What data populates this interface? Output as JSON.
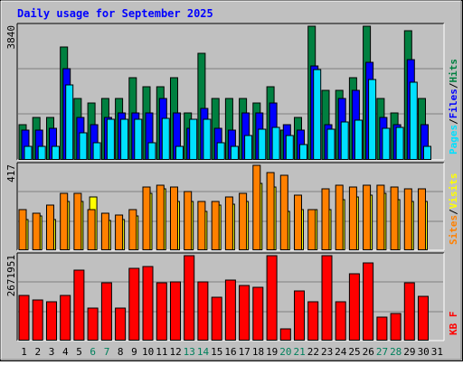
{
  "chart_data": {
    "type": "bar",
    "title": "Daily usage for September 2025",
    "categories": [
      "1",
      "2",
      "3",
      "4",
      "5",
      "6",
      "7",
      "8",
      "9",
      "10",
      "11",
      "12",
      "13",
      "14",
      "15",
      "16",
      "17",
      "18",
      "19",
      "20",
      "21",
      "22",
      "23",
      "24",
      "25",
      "26",
      "27",
      "28",
      "29",
      "30",
      "31"
    ],
    "weekend_days": [
      "6",
      "7",
      "13",
      "14",
      "20",
      "21",
      "27",
      "28"
    ],
    "panels": {
      "top": {
        "ymax_label": "3840",
        "ymax": 3840,
        "legend": [
          "Pages",
          "Files",
          "Hits"
        ],
        "series": [
          {
            "name": "Hits",
            "color": "#008040",
            "values": [
              1022,
              1227,
              1227,
              3236,
              1755,
              1623,
              1755,
              1755,
              2362,
              2114,
              2114,
              2362,
              1352,
              3067,
              1755,
              1755,
              1755,
              1623,
              2114,
              852,
              1227,
              3840,
              1987,
              1987,
              2362,
              3840,
              1755,
              1352,
              3706,
              1755,
              0
            ]
          },
          {
            "name": "Files",
            "color": "#0000ff",
            "values": [
              852,
              852,
              918,
              2632,
              1227,
              1022,
              1227,
              1352,
              1352,
              1352,
              1756,
              1352,
              918,
              1485,
              918,
              852,
              1352,
              1352,
              1623,
              1022,
              852,
              2700,
              1022,
              1756,
              1987,
              2800,
              1227,
              1022,
              2870,
              1022,
              0
            ]
          },
          {
            "name": "Pages",
            "color": "#00e0ff",
            "values": [
              400,
              400,
              400,
              2160,
              790,
              480,
              1160,
              1160,
              1160,
              480,
              1190,
              400,
              1160,
              1160,
              480,
              400,
              700,
              880,
              930,
              700,
              430,
              2600,
              880,
              1090,
              1130,
              2320,
              920,
              940,
              2240,
              400,
              0
            ]
          }
        ]
      },
      "middle": {
        "ymax_label": "417",
        "ymax": 417,
        "legend": [
          "Sites",
          "Visits"
        ],
        "series": [
          {
            "name": "Visits",
            "color": "#ffff00",
            "values": [
              150,
              170,
              150,
              240,
              240,
              260,
              147,
              150,
              170,
              280,
              300,
              240,
              240,
              190,
              220,
              227,
              240,
              327,
              310,
              190,
              200,
              200,
              200,
              250,
              260,
              270,
              280,
              250,
              240,
              240,
              0
            ]
          },
          {
            "name": "Sites",
            "color": "#ff8000",
            "values": [
              200,
              180,
              220,
              280,
              280,
              200,
              180,
              175,
              200,
              310,
              320,
              310,
              290,
              240,
              240,
              260,
              280,
              417,
              380,
              370,
              271,
              200,
              300,
              320,
              310,
              320,
              320,
              310,
              300,
              300,
              0
            ]
          }
        ]
      },
      "bottom": {
        "ymax_label": "2671951",
        "ymax": 2671951,
        "legend": [
          "KB F"
        ],
        "series": [
          {
            "name": "KB F",
            "color": "#ff0000",
            "values": [
              1430000,
              1290000,
              1230000,
              1410000,
              2220000,
              1010000,
              1820000,
              1020000,
              2260000,
              2320000,
              1830000,
              1850000,
              2671951,
              1850000,
              1360000,
              1900000,
              1730000,
              1670000,
              2671951,
              360000,
              1560000,
              1230000,
              2671951,
              1210000,
              2110000,
              2450000,
              740000,
              840000,
              1810000,
              1400000,
              0
            ]
          }
        ]
      }
    },
    "colors": {
      "background": "#c0c0c0",
      "title": "#0000ff",
      "weekend_label": "#00805c",
      "weekday_label": "#000000"
    }
  }
}
